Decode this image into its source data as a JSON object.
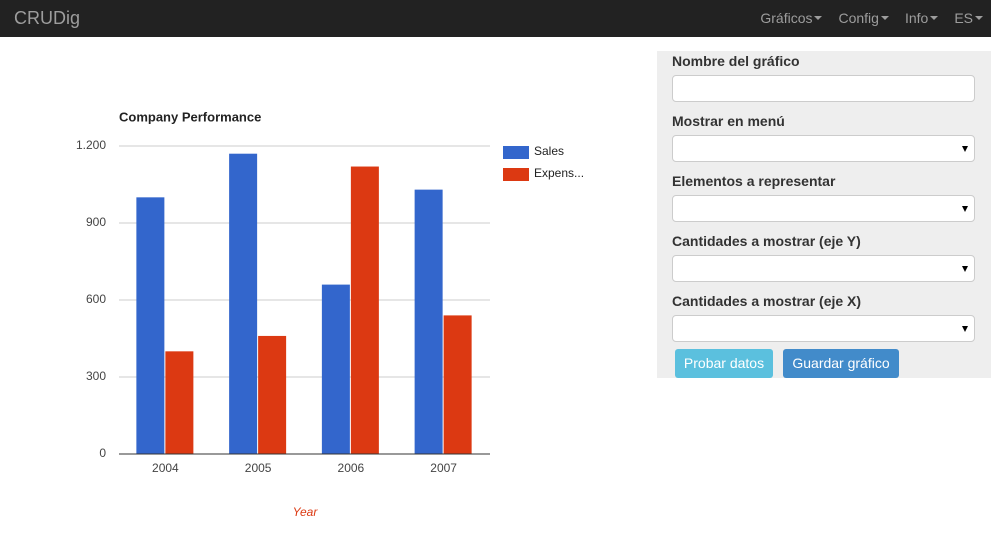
{
  "navbar": {
    "brand": "CRUDig",
    "menu": [
      "Gráficos",
      "Config",
      "Info",
      "ES"
    ]
  },
  "chart_data": {
    "type": "bar",
    "title": "Company Performance",
    "x_label": "Year",
    "categories": [
      "2004",
      "2005",
      "2006",
      "2007"
    ],
    "series": [
      {
        "name": "Sales",
        "color": "#3366cc",
        "values": [
          1000,
          1170,
          660,
          1030
        ]
      },
      {
        "name": "Expens...",
        "color": "#dc3912",
        "values": [
          400,
          460,
          1120,
          540
        ]
      }
    ],
    "ylim": [
      0,
      1200
    ],
    "yticks": [
      0,
      300,
      600,
      900,
      {
        "value": 1200,
        "label": "1.200"
      }
    ],
    "grid": true,
    "legend": "right"
  },
  "form": {
    "fields": [
      "Nombre del gráfico",
      "Mostrar en menú",
      "Elementos a representar",
      "Cantidades a mostrar (eje Y)",
      "Cantidades a mostrar (eje X)"
    ],
    "buttons": [
      "Probar datos",
      "Guardar gráfico"
    ]
  }
}
